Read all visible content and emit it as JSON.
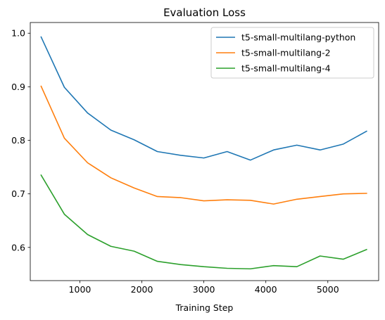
{
  "chart_data": {
    "type": "line",
    "title": "Evaluation Loss",
    "xlabel": "Training Step",
    "ylabel": "",
    "xlim": [
      200,
      5820
    ],
    "ylim": [
      0.538,
      1.02
    ],
    "xticks": [
      1000,
      2000,
      3000,
      4000,
      5000
    ],
    "yticks": [
      0.6,
      0.7,
      0.8,
      0.9,
      1.0
    ],
    "xtick_labels": [
      "1000",
      "2000",
      "3000",
      "4000",
      "5000"
    ],
    "ytick_labels": [
      "0.6",
      "0.7",
      "0.8",
      "0.9",
      "1.0"
    ],
    "grid": false,
    "legend_position": "upper right",
    "x": [
      375,
      750,
      1125,
      1500,
      1875,
      2250,
      2625,
      3000,
      3375,
      3750,
      4125,
      4500,
      4875,
      5250,
      5625
    ],
    "series": [
      {
        "name": "t5-small-multilang-python",
        "color": "#1f77b4",
        "values": [
          0.993,
          0.899,
          0.851,
          0.819,
          0.801,
          0.779,
          0.772,
          0.767,
          0.779,
          0.763,
          0.782,
          0.791,
          0.782,
          0.793,
          0.817
        ]
      },
      {
        "name": "t5-small-multilang-2",
        "color": "#ff7f0e",
        "values": [
          0.901,
          0.804,
          0.758,
          0.73,
          0.711,
          0.695,
          0.693,
          0.687,
          0.689,
          0.688,
          0.681,
          0.69,
          0.695,
          0.7,
          0.701
        ]
      },
      {
        "name": "t5-small-multilang-4",
        "color": "#2ca02c",
        "values": [
          0.735,
          0.662,
          0.624,
          0.602,
          0.593,
          0.574,
          0.568,
          0.564,
          0.561,
          0.56,
          0.566,
          0.564,
          0.584,
          0.578,
          0.596
        ]
      }
    ]
  }
}
